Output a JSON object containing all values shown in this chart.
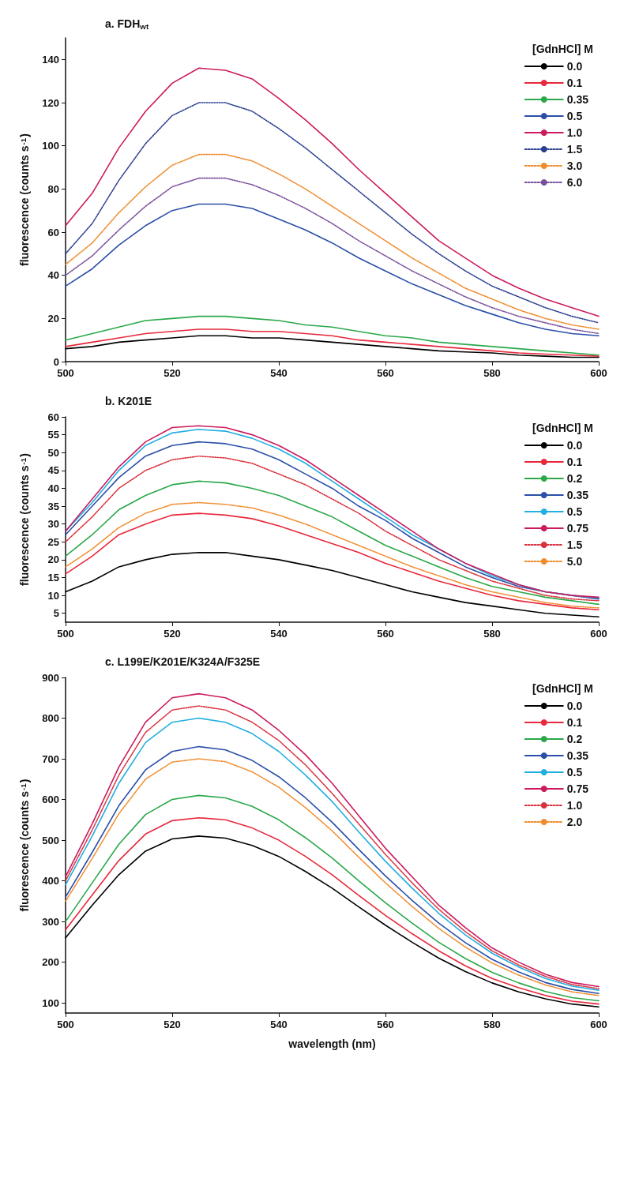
{
  "chart_data": [
    {
      "type": "line",
      "title": "a. FDH$_{wt}$",
      "ylabel": "fluorescence (counts s$^{-1}$)",
      "legend_title": "[GdnHCl] M",
      "legend": "top right",
      "x": [
        500,
        505,
        510,
        515,
        520,
        525,
        530,
        535,
        540,
        545,
        550,
        555,
        560,
        565,
        570,
        575,
        580,
        585,
        590,
        595,
        600
      ],
      "xlim": [
        500,
        600
      ],
      "xticks": [
        500,
        520,
        540,
        560,
        580,
        600
      ],
      "ylim": [
        0,
        150
      ],
      "yticks": [
        0,
        20,
        40,
        60,
        80,
        100,
        120,
        140
      ],
      "series": [
        {
          "name": "0.0",
          "color": "#000000",
          "line_style": "solid",
          "values": [
            6,
            7,
            9,
            10,
            11,
            12,
            12,
            11,
            11,
            10,
            9,
            8,
            7,
            6,
            5,
            4.5,
            4,
            3,
            2.5,
            2,
            2
          ]
        },
        {
          "name": "0.1",
          "color": "#e8283c",
          "line_style": "solid",
          "values": [
            7,
            9,
            11,
            13,
            14,
            15,
            15,
            14,
            14,
            13,
            12,
            10,
            9,
            8,
            7,
            6,
            5,
            4,
            3.5,
            3,
            2.5
          ]
        },
        {
          "name": "0.35",
          "color": "#2aa84a",
          "line_style": "solid",
          "values": [
            10,
            13,
            16,
            19,
            20,
            21,
            21,
            20,
            19,
            17,
            16,
            14,
            12,
            11,
            9,
            8,
            7,
            6,
            5,
            4,
            3
          ]
        },
        {
          "name": "0.5",
          "color": "#2b4fa8",
          "line_style": "solid",
          "values": [
            35,
            43,
            54,
            63,
            70,
            73,
            73,
            71,
            66,
            61,
            55,
            48,
            42,
            36,
            31,
            26,
            22,
            18,
            15,
            13,
            12
          ]
        },
        {
          "name": "1.0",
          "color": "#cc1a5e",
          "line_style": "solid",
          "values": [
            63,
            78,
            99,
            116,
            129,
            136,
            135,
            131,
            122,
            112,
            101,
            89,
            78,
            67,
            56,
            48,
            40,
            34,
            29,
            25,
            21
          ]
        },
        {
          "name": "1.5",
          "color": "#2b3f8f",
          "line_style": "dotted",
          "values": [
            50,
            64,
            84,
            101,
            114,
            120,
            120,
            116,
            108,
            99,
            89,
            79,
            69,
            59,
            50,
            42,
            35,
            30,
            25,
            21,
            18
          ]
        },
        {
          "name": "3.0",
          "color": "#f08a2a",
          "line_style": "dotted",
          "values": [
            45,
            55,
            69,
            81,
            91,
            96,
            96,
            93,
            87,
            80,
            72,
            64,
            56,
            48,
            41,
            34,
            29,
            24,
            20,
            17,
            15
          ]
        },
        {
          "name": "6.0",
          "color": "#7a4f9c",
          "line_style": "dotted",
          "values": [
            40,
            49,
            61,
            72,
            81,
            85,
            85,
            82,
            77,
            71,
            64,
            56,
            49,
            42,
            36,
            30,
            25,
            21,
            18,
            15,
            13
          ]
        }
      ]
    },
    {
      "type": "line",
      "title": "b. K201E",
      "ylabel": "fluorescence (counts s$^{-1}$)",
      "legend_title": "[GdnHCl] M",
      "legend": "top right",
      "x": [
        500,
        505,
        510,
        515,
        520,
        525,
        530,
        535,
        540,
        545,
        550,
        555,
        560,
        565,
        570,
        575,
        580,
        585,
        590,
        595,
        600
      ],
      "xlim": [
        500,
        600
      ],
      "xticks": [
        500,
        520,
        540,
        560,
        580,
        600
      ],
      "ylim": [
        2.5,
        60
      ],
      "yticks": [
        5,
        10,
        15,
        20,
        25,
        30,
        35,
        40,
        45,
        50,
        55,
        60
      ],
      "series": [
        {
          "name": "0.0",
          "color": "#000000",
          "line_style": "solid",
          "values": [
            11,
            14,
            18,
            20,
            21.5,
            22,
            22,
            21,
            20,
            18.5,
            17,
            15,
            13,
            11,
            9.5,
            8,
            7,
            6,
            5,
            4.5,
            4
          ]
        },
        {
          "name": "0.1",
          "color": "#e8283c",
          "line_style": "solid",
          "values": [
            16,
            21,
            27,
            30,
            32.5,
            33,
            32.5,
            31.5,
            29.5,
            27,
            24.5,
            22,
            19,
            16.5,
            14,
            12,
            10,
            8.5,
            7.5,
            6.5,
            6
          ]
        },
        {
          "name": "0.2",
          "color": "#2aa84a",
          "line_style": "solid",
          "values": [
            21,
            27,
            34,
            38,
            41,
            42,
            41.5,
            40,
            38,
            35,
            32,
            28,
            24,
            21,
            18,
            15,
            12.5,
            11,
            9.5,
            8.5,
            7.5
          ]
        },
        {
          "name": "0.35",
          "color": "#2b4fa8",
          "line_style": "solid",
          "values": [
            27,
            35,
            43,
            49,
            52,
            53,
            52.5,
            51,
            48,
            44,
            40,
            35,
            31,
            26,
            22,
            18,
            15,
            12.5,
            11,
            10,
            9
          ]
        },
        {
          "name": "0.5",
          "color": "#23aee0",
          "line_style": "solid",
          "values": [
            28,
            36,
            45,
            52,
            55.5,
            56.5,
            56,
            54,
            51,
            47,
            42,
            37,
            32,
            27,
            23,
            19,
            15.5,
            13,
            11,
            10,
            9.3
          ]
        },
        {
          "name": "0.75",
          "color": "#cc1a5e",
          "line_style": "solid",
          "values": [
            28,
            37,
            46,
            53,
            57,
            57.5,
            57,
            55,
            52,
            48,
            43,
            38,
            33,
            28,
            23,
            19,
            16,
            13,
            11,
            10,
            9.5
          ]
        },
        {
          "name": "1.5",
          "color": "#d8303c",
          "line_style": "dotted",
          "values": [
            25,
            32,
            40,
            45,
            48,
            49,
            48.5,
            47,
            44,
            41,
            37,
            33,
            28,
            24,
            20,
            17,
            14,
            12,
            10,
            9,
            8.5
          ]
        },
        {
          "name": "5.0",
          "color": "#f08a2a",
          "line_style": "dotted",
          "values": [
            18,
            23,
            29,
            33,
            35.5,
            36,
            35.5,
            34.5,
            32.5,
            30,
            27,
            24,
            21,
            18,
            15.5,
            13,
            11,
            9.5,
            8,
            7,
            6.5
          ]
        }
      ]
    },
    {
      "type": "line",
      "title": "c. L199E/K201E/K324A/F325E",
      "xlabel": "wavelength (nm)",
      "ylabel": "fluorescence (counts s$^{-1}$)",
      "legend_title": "[GdnHCl] M",
      "legend": "top right",
      "x": [
        500,
        505,
        510,
        515,
        520,
        525,
        530,
        535,
        540,
        545,
        550,
        555,
        560,
        565,
        570,
        575,
        580,
        585,
        590,
        595,
        600
      ],
      "xlim": [
        500,
        600
      ],
      "xticks": [
        500,
        520,
        540,
        560,
        580,
        600
      ],
      "ylim": [
        75,
        900
      ],
      "yticks": [
        100,
        200,
        300,
        400,
        500,
        600,
        700,
        800,
        900
      ],
      "series": [
        {
          "name": "0.0",
          "color": "#000000",
          "line_style": "solid",
          "values": [
            260,
            340,
            415,
            473,
            503,
            510,
            505,
            487,
            460,
            423,
            382,
            336,
            291,
            249,
            210,
            177,
            149,
            127,
            110,
            97,
            90
          ]
        },
        {
          "name": "0.1",
          "color": "#e8283c",
          "line_style": "solid",
          "values": [
            280,
            365,
            450,
            515,
            548,
            555,
            550,
            530,
            500,
            460,
            415,
            364,
            315,
            270,
            228,
            191,
            160,
            137,
            118,
            104,
            97
          ]
        },
        {
          "name": "0.2",
          "color": "#2aa84a",
          "line_style": "solid",
          "values": [
            300,
            395,
            490,
            563,
            600,
            610,
            604,
            583,
            550,
            506,
            456,
            400,
            346,
            296,
            249,
            209,
            175,
            149,
            128,
            113,
            105
          ]
        },
        {
          "name": "0.35",
          "color": "#2b4fa8",
          "line_style": "solid",
          "values": [
            360,
            470,
            585,
            673,
            718,
            730,
            722,
            696,
            656,
            604,
            544,
            477,
            412,
            352,
            296,
            248,
            207,
            176,
            150,
            133,
            123
          ]
        },
        {
          "name": "0.5",
          "color": "#23aee0",
          "line_style": "solid",
          "values": [
            390,
            510,
            640,
            740,
            790,
            800,
            790,
            762,
            718,
            660,
            595,
            520,
            448,
            382,
            320,
            267,
            222,
            188,
            160,
            141,
            131
          ]
        },
        {
          "name": "0.75",
          "color": "#cc1a5e",
          "line_style": "solid",
          "values": [
            410,
            540,
            680,
            790,
            850,
            860,
            850,
            820,
            770,
            710,
            640,
            560,
            480,
            410,
            340,
            285,
            235,
            200,
            170,
            150,
            140
          ]
        },
        {
          "name": "1.0",
          "color": "#d8303c",
          "line_style": "dotted",
          "values": [
            400,
            525,
            660,
            765,
            820,
            830,
            820,
            790,
            745,
            685,
            615,
            540,
            465,
            395,
            330,
            275,
            228,
            193,
            165,
            145,
            135
          ]
        },
        {
          "name": "2.0",
          "color": "#f08a2a",
          "line_style": "dotted",
          "values": [
            350,
            455,
            565,
            650,
            692,
            700,
            693,
            668,
            630,
            580,
            523,
            458,
            395,
            337,
            283,
            237,
            198,
            168,
            144,
            127,
            118
          ]
        }
      ]
    }
  ]
}
